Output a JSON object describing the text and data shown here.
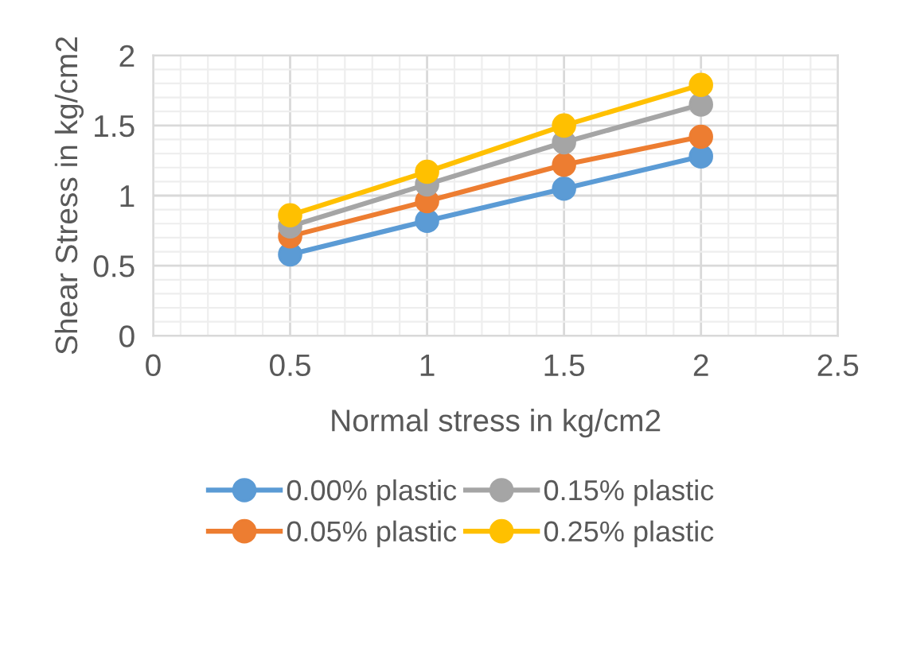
{
  "chart_data": {
    "type": "line",
    "xlabel": "Normal stress in kg/cm2",
    "ylabel": "Shear Stress in kg/cm2",
    "x": [
      0.5,
      1,
      1.5,
      2
    ],
    "series": [
      {
        "name": "0.00% plastic",
        "color": "#5b9bd5",
        "values": [
          0.58,
          0.82,
          1.05,
          1.28
        ]
      },
      {
        "name": "0.05% plastic",
        "color": "#ed7d31",
        "values": [
          0.71,
          0.96,
          1.22,
          1.42
        ]
      },
      {
        "name": "0.15% plastic",
        "color": "#a5a5a5",
        "values": [
          0.78,
          1.08,
          1.38,
          1.65
        ]
      },
      {
        "name": "0.25% plastic",
        "color": "#ffc000",
        "values": [
          0.86,
          1.17,
          1.5,
          1.79
        ]
      }
    ],
    "xlim": [
      0,
      2.5
    ],
    "xticks": [
      0,
      0.5,
      1,
      1.5,
      2,
      2.5
    ],
    "ylim": [
      0,
      2
    ],
    "yticks": [
      0,
      0.5,
      1,
      1.5,
      2
    ],
    "grid": true,
    "legend": "bottom",
    "marker": "circle",
    "line_style": "solid"
  }
}
